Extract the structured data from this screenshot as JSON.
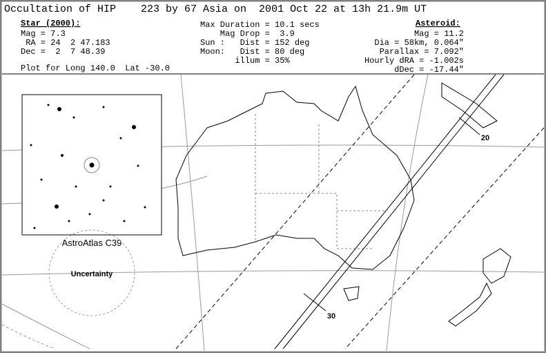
{
  "header": {
    "title": "Occultation of HIP    223 by 67 Asia on  2001 Oct 22 at 13h 21.9m UT"
  },
  "star": {
    "heading": "Star (2000):",
    "lines": [
      "Mag = 7.3",
      " RA = 24  2 47.183",
      "Dec =  2  7 48.39"
    ]
  },
  "event": {
    "lines": [
      "Max Duration = 10.1 secs",
      "    Mag Drop =  3.9",
      "Sun :   Dist = 152 deg",
      "Moon:   Dist = 80 deg",
      "       illum = 35%"
    ]
  },
  "asteroid": {
    "heading": "Asteroid:",
    "lines": [
      "Mag = 11.2",
      "Dia = 58km, 0.064\"",
      "Parallax = 7.092\"",
      "Hourly dRA = -1.002s",
      "dDec = -17.44\""
    ]
  },
  "plot_note": "Plot for Long 140.0  Lat -30.0",
  "map": {
    "inset_label": "AstroAtlas C39",
    "uncertainty_label": "Uncertainty",
    "time_labels": [
      "20",
      "30"
    ]
  }
}
